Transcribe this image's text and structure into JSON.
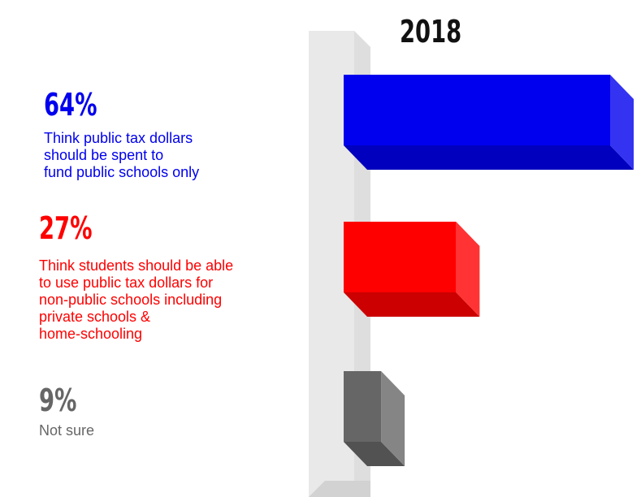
{
  "chart_data": {
    "type": "bar",
    "orientation": "horizontal",
    "title": "2018",
    "categories": [
      "Think public tax dollars\nshould be spent to\nfund public schools only",
      "Think students should be able\n to use public tax dollars for\nnon-public schools including\nprivate schools &\nhome-schooling",
      "Not sure"
    ],
    "values": [
      64,
      27,
      9
    ],
    "value_labels": [
      "64%",
      "27%",
      "9%"
    ],
    "unit": "%",
    "colors": [
      "#0000ee",
      "#ff0000",
      "#666666"
    ],
    "style": "3d",
    "grid": false,
    "legend": "none"
  }
}
